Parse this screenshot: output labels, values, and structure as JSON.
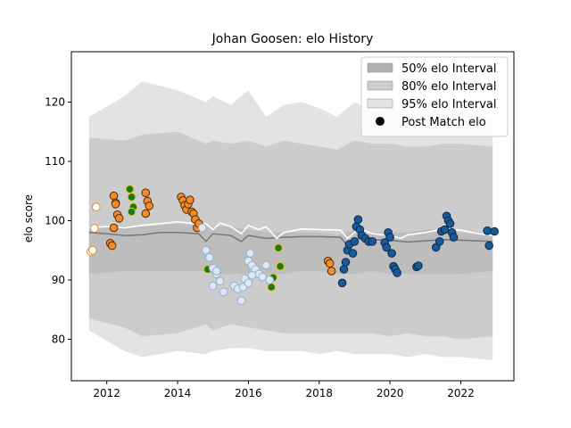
{
  "chart_data": {
    "type": "scatter",
    "title": "Johan Goosen: elo History",
    "xlabel": "",
    "ylabel": "elo score",
    "xlim": [
      2011.0,
      2023.5
    ],
    "ylim": [
      73.0,
      128.5
    ],
    "x_ticks": [
      2012,
      2014,
      2016,
      2018,
      2020,
      2022
    ],
    "y_ticks": [
      80,
      90,
      100,
      110,
      120
    ],
    "legend": {
      "position": "top-right",
      "entries": [
        {
          "label": "50% elo Interval",
          "color": "#b0b0b0"
        },
        {
          "label": "80% elo Interval",
          "color": "#cccccc"
        },
        {
          "label": "95% elo Interval",
          "color": "#e3e3e3"
        },
        {
          "label": "Post Match elo",
          "color": "#000000"
        }
      ]
    },
    "colors": {
      "band95": "#e3e3e3",
      "band80": "#cccccc",
      "band50": "#b0b0b0",
      "median_line": "#777777",
      "mean_line": "#ffffff",
      "orange": "#f28b2b",
      "green": "#1a7a1a",
      "yellow": "#f0c419",
      "light_blue": "#dde8f5",
      "dark_blue": "#1a5a95"
    },
    "bands": {
      "x": [
        2011.5,
        2012.5,
        2013.0,
        2014.0,
        2014.8,
        2015.0,
        2015.5,
        2016.0,
        2016.5,
        2017.0,
        2017.5,
        2018.0,
        2018.5,
        2019.0,
        2019.5,
        2020.0,
        2020.5,
        2021.0,
        2021.5,
        2022.0,
        2022.9
      ],
      "u95": [
        117.5,
        121.0,
        123.5,
        122.0,
        120.0,
        121.0,
        119.5,
        122.0,
        117.5,
        119.5,
        120.0,
        119.0,
        117.5,
        120.0,
        118.5,
        119.0,
        117.5,
        119.0,
        118.0,
        118.5,
        117.0
      ],
      "u80": [
        114.0,
        113.5,
        114.5,
        115.0,
        113.0,
        113.5,
        113.0,
        113.5,
        112.5,
        113.5,
        113.0,
        112.5,
        112.0,
        113.5,
        113.0,
        113.0,
        112.5,
        112.5,
        113.0,
        113.0,
        112.5
      ],
      "l80": [
        83.5,
        82.0,
        80.5,
        81.0,
        82.5,
        81.5,
        82.5,
        82.0,
        81.5,
        81.0,
        81.0,
        81.0,
        81.0,
        81.0,
        81.0,
        80.5,
        81.0,
        80.5,
        80.5,
        80.0,
        80.5
      ],
      "l95": [
        81.5,
        78.0,
        77.0,
        78.0,
        77.5,
        78.0,
        78.5,
        78.5,
        78.0,
        78.0,
        78.0,
        77.5,
        78.0,
        77.5,
        77.5,
        77.5,
        77.0,
        77.5,
        77.0,
        77.0,
        76.5
      ],
      "u50": [
        99.0,
        99.0,
        99.0,
        99.5,
        99.0,
        99.0,
        99.0,
        98.5,
        98.0,
        98.0,
        98.0,
        98.0,
        97.5,
        98.5,
        98.0,
        98.0,
        98.0,
        98.5,
        98.5,
        98.0,
        97.5
      ],
      "l50": [
        91.0,
        91.5,
        91.5,
        91.5,
        91.5,
        91.0,
        91.0,
        91.0,
        91.0,
        91.0,
        91.5,
        91.5,
        91.0,
        91.0,
        91.5,
        91.0,
        91.0,
        91.0,
        91.0,
        91.0,
        91.5
      ]
    },
    "median_line": {
      "x": [
        2011.5,
        2012.0,
        2012.5,
        2013.0,
        2013.5,
        2014.0,
        2014.6,
        2014.8,
        2015.0,
        2015.5,
        2015.8,
        2016.0,
        2016.5,
        2017.0,
        2017.5,
        2018.0,
        2018.6,
        2018.8,
        2019.0,
        2019.2,
        2019.5,
        2020.0,
        2020.5,
        2021.0,
        2021.5,
        2022.0,
        2022.9
      ],
      "y": [
        98.0,
        97.8,
        97.5,
        97.6,
        98.0,
        98.0,
        97.8,
        96.5,
        97.8,
        97.5,
        96.5,
        97.5,
        97.0,
        97.2,
        97.3,
        97.3,
        97.2,
        95.8,
        96.8,
        97.2,
        96.8,
        96.7,
        96.4,
        96.6,
        96.8,
        96.7,
        96.5
      ]
    },
    "mean_line": {
      "x": [
        2011.5,
        2012.0,
        2012.5,
        2013.0,
        2013.5,
        2014.0,
        2014.5,
        2014.8,
        2015.0,
        2015.2,
        2015.5,
        2015.8,
        2016.0,
        2016.3,
        2016.5,
        2016.8,
        2017.0,
        2017.5,
        2018.0,
        2018.6,
        2018.8,
        2019.0,
        2019.2,
        2019.5,
        2020.0,
        2020.3,
        2020.5,
        2021.0,
        2021.5,
        2022.0,
        2022.5,
        2022.9
      ],
      "y": [
        98.8,
        99.0,
        98.8,
        99.2,
        99.5,
        99.8,
        99.5,
        99.5,
        98.5,
        99.6,
        99.0,
        97.8,
        99.2,
        98.5,
        99.0,
        97.0,
        98.0,
        98.6,
        98.5,
        98.4,
        97.0,
        98.0,
        98.5,
        97.8,
        97.5,
        97.0,
        97.6,
        98.0,
        98.6,
        98.4,
        97.8,
        97.5
      ]
    },
    "series": [
      {
        "group": "orange-hollow",
        "fill": "#ffffff",
        "edge": "#f28b2b",
        "x": [
          2011.55,
          2011.6,
          2011.65,
          2011.7
        ],
        "y": [
          94.8,
          95.0,
          98.7,
          102.3
        ]
      },
      {
        "group": "orange",
        "fill": "#f28b2b",
        "edge": "#5a2a00",
        "x": [
          2012.1,
          2012.15,
          2012.2,
          2012.25,
          2012.3,
          2012.35,
          2012.2,
          2012.25,
          2013.1,
          2013.15,
          2013.2,
          2013.1,
          2014.1,
          2014.15,
          2014.2,
          2014.25,
          2014.3,
          2014.35,
          2014.4,
          2014.45,
          2014.5,
          2014.55,
          2014.6
        ],
        "y": [
          96.2,
          95.8,
          104.2,
          103.0,
          101.0,
          100.4,
          98.8,
          102.8,
          104.7,
          103.3,
          102.5,
          101.2,
          104.0,
          103.4,
          102.6,
          101.9,
          102.8,
          103.5,
          101.5,
          101.2,
          100.2,
          98.8,
          99.5
        ]
      },
      {
        "group": "green",
        "fill": "#1a7a1a",
        "edge": "#f0c419",
        "x": [
          2012.65,
          2012.7,
          2012.75,
          2012.7,
          2014.85,
          2016.65,
          2016.7,
          2016.85,
          2016.9
        ],
        "y": [
          105.3,
          104.0,
          102.3,
          101.5,
          91.8,
          88.8,
          90.4,
          95.4,
          92.3
        ]
      },
      {
        "group": "light-blue",
        "fill": "#dde8f5",
        "edge": "#9ab0c8",
        "x": [
          2014.7,
          2014.8,
          2014.9,
          2015.0,
          2015.1,
          2015.2,
          2015.3,
          2015.0,
          2015.1,
          2015.6,
          2015.7,
          2015.8,
          2015.85,
          2015.9,
          2016.0,
          2016.05,
          2016.1,
          2016.2,
          2016.3,
          2016.4,
          2016.5,
          2016.6,
          2016.0,
          2016.1
        ],
        "y": [
          98.8,
          95.0,
          93.8,
          92.0,
          91.0,
          89.8,
          88.0,
          89.0,
          91.5,
          89.0,
          88.5,
          86.5,
          88.8,
          90.2,
          93.2,
          94.5,
          92.5,
          91.8,
          91.0,
          90.5,
          92.5,
          90.0,
          89.5,
          90.8
        ]
      },
      {
        "group": "orange-2018",
        "fill": "#f28b2b",
        "edge": "#5a2a00",
        "x": [
          2018.25,
          2018.3,
          2018.35
        ],
        "y": [
          93.2,
          92.8,
          91.5
        ]
      },
      {
        "group": "dark-blue",
        "fill": "#1a5a95",
        "edge": "#0a2a50",
        "x": [
          2018.65,
          2018.7,
          2018.75,
          2018.8,
          2018.85,
          2018.95,
          2019.0,
          2019.05,
          2019.1,
          2019.15,
          2019.2,
          2019.3,
          2019.4,
          2019.5,
          2019.85,
          2019.9,
          2019.95,
          2020.0,
          2020.05,
          2020.1,
          2020.15,
          2020.2,
          2020.75,
          2020.8,
          2021.3,
          2021.4,
          2021.45,
          2021.55,
          2021.6,
          2021.65,
          2021.7,
          2021.75,
          2021.8,
          2022.75,
          2022.8,
          2022.95
        ],
        "y": [
          89.5,
          91.8,
          93.0,
          95.0,
          96.0,
          94.5,
          96.5,
          99.0,
          100.2,
          98.5,
          97.5,
          97.0,
          96.5,
          96.5,
          96.3,
          95.5,
          98.0,
          97.2,
          94.5,
          92.3,
          91.8,
          91.2,
          92.2,
          92.4,
          95.5,
          96.5,
          98.2,
          98.5,
          100.8,
          100.0,
          99.5,
          98.0,
          97.2,
          98.3,
          95.8,
          98.2
        ]
      }
    ]
  }
}
